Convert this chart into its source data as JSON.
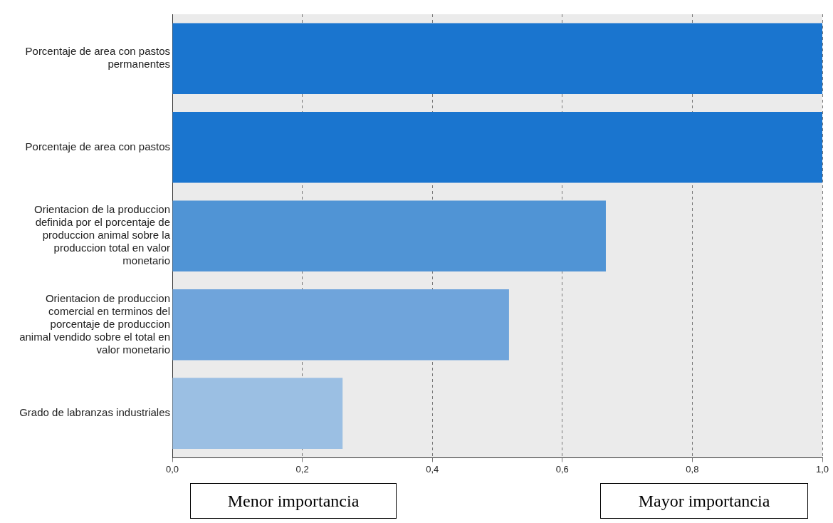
{
  "chart_data": {
    "type": "bar",
    "orientation": "horizontal",
    "categories": [
      "Porcentaje de area con pastos permanentes",
      "Porcentaje de area con pastos",
      "Orientacion de la produccion definida por el porcentaje de produccion animal sobre la produccion total en valor monetario",
      "Orientacion de produccion comercial en terminos del porcentaje de produccion animal vendido sobre el total en valor monetario",
      "Grado de labranzas industriales"
    ],
    "values": [
      1.0,
      1.0,
      0.667,
      0.518,
      0.262
    ],
    "colors": [
      "#1a75cf",
      "#1a75cf",
      "#5094d5",
      "#6fa4db",
      "#9bbfe3"
    ],
    "xlim": [
      0,
      1
    ],
    "xticks": [
      {
        "value": 0,
        "label": "0,0"
      },
      {
        "value": 0.2,
        "label": "0,2"
      },
      {
        "value": 0.4,
        "label": "0,4"
      },
      {
        "value": 0.6,
        "label": "0,6"
      },
      {
        "value": 0.8,
        "label": "0,8"
      },
      {
        "value": 1,
        "label": "1,0"
      }
    ],
    "grid": "x",
    "legend": false,
    "annotations": [
      "Menor importancia",
      "Mayor importancia"
    ]
  }
}
